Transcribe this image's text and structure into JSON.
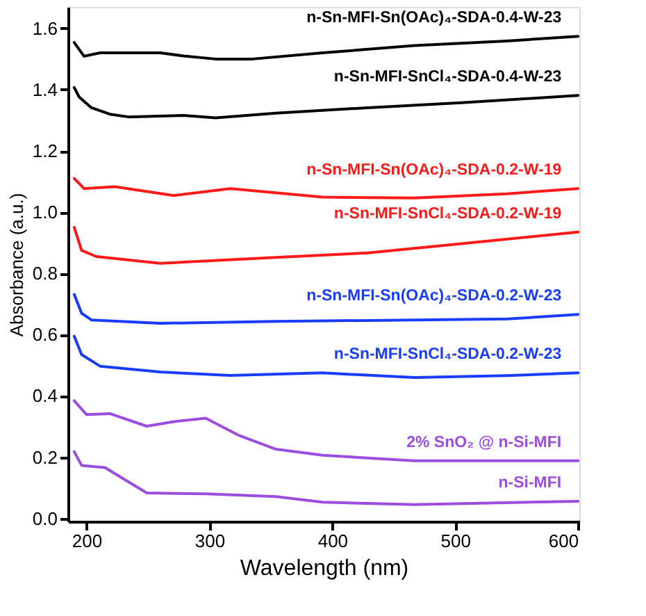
{
  "chart_data": {
    "type": "line",
    "xlabel": "Wavelength (nm)",
    "ylabel": "Absorbance (a.u.)",
    "xlim": [
      185,
      601
    ],
    "ylim": [
      -0.01,
      1.67
    ],
    "xticks": [
      200,
      300,
      400,
      500,
      600
    ],
    "yticks": [
      {
        "value": 0,
        "label": "0.0"
      },
      {
        "value": 0.2,
        "label": "0.2"
      },
      {
        "value": 0.4,
        "label": "0.4"
      },
      {
        "value": 0.6,
        "label": "0.6"
      },
      {
        "value": 0.8,
        "label": "0.8"
      },
      {
        "value": 1.0,
        "label": "1.0"
      },
      {
        "value": 1.2,
        "label": "1.2"
      },
      {
        "value": 1.4,
        "label": "1.4"
      },
      {
        "value": 1.6,
        "label": "1.6"
      }
    ],
    "grid": false,
    "marker": "none",
    "line_style": "solid",
    "series": [
      {
        "name": "n-Sn-MFI-Sn(OAc)₄-SDA-0.4-W-23",
        "color": "#000000",
        "x": [
          190,
          198,
          211,
          260,
          279,
          305,
          335,
          392,
          467,
          542,
          600
        ],
        "values": [
          1.554,
          1.509,
          1.52,
          1.52,
          1.51,
          1.5,
          1.5,
          1.52,
          1.544,
          1.559,
          1.574
        ]
      },
      {
        "name": "n-Sn-MFI-SnCl₄-SDA-0.4-W-23",
        "color": "#000000",
        "x": [
          190,
          194,
          204,
          219,
          234,
          279,
          305,
          354,
          429,
          505,
          600
        ],
        "values": [
          1.407,
          1.376,
          1.341,
          1.32,
          1.311,
          1.316,
          1.308,
          1.323,
          1.341,
          1.357,
          1.381
        ]
      },
      {
        "name": "n-Sn-MFI-Sn(OAc)₄-SDA-0.2-W-19",
        "color": "#ff1a1a",
        "x": [
          190,
          198,
          223,
          271,
          317,
          392,
          467,
          542,
          600
        ],
        "values": [
          1.11,
          1.077,
          1.083,
          1.054,
          1.077,
          1.049,
          1.046,
          1.06,
          1.077
        ]
      },
      {
        "name": "n-Sn-MFI-SnCl₄-SDA-0.2-W-19",
        "color": "#ff1a1a",
        "x": [
          190,
          196,
          208,
          260,
          354,
          429,
          505,
          600
        ],
        "values": [
          0.95,
          0.875,
          0.855,
          0.833,
          0.852,
          0.867,
          0.897,
          0.935
        ]
      },
      {
        "name": "n-Sn-MFI-Sn(OAc)₄-SDA-0.2-W-23",
        "color": "#1a3cff",
        "x": [
          190,
          196,
          204,
          260,
          354,
          467,
          542,
          600
        ],
        "values": [
          0.731,
          0.67,
          0.648,
          0.637,
          0.643,
          0.648,
          0.651,
          0.666
        ]
      },
      {
        "name": "n-Sn-MFI-SnCl₄-SDA-0.2-W-23",
        "color": "#1a3cff",
        "x": [
          190,
          196,
          211,
          260,
          317,
          392,
          467,
          542,
          600
        ],
        "values": [
          0.595,
          0.535,
          0.497,
          0.478,
          0.467,
          0.475,
          0.46,
          0.466,
          0.475
        ]
      },
      {
        "name": "2% SnO₂ @ n-Si-MFI",
        "color": "#9b4de0",
        "x": [
          190,
          200,
          219,
          249,
          271,
          297,
          324,
          354,
          392,
          467,
          600
        ],
        "values": [
          0.384,
          0.339,
          0.342,
          0.301,
          0.316,
          0.327,
          0.271,
          0.226,
          0.206,
          0.188,
          0.188
        ]
      },
      {
        "name": "n-Si-MFI",
        "color": "#9b4de0",
        "x": [
          190,
          196,
          215,
          249,
          297,
          354,
          392,
          467,
          600
        ],
        "values": [
          0.218,
          0.173,
          0.166,
          0.083,
          0.08,
          0.071,
          0.053,
          0.045,
          0.056
        ]
      }
    ]
  }
}
